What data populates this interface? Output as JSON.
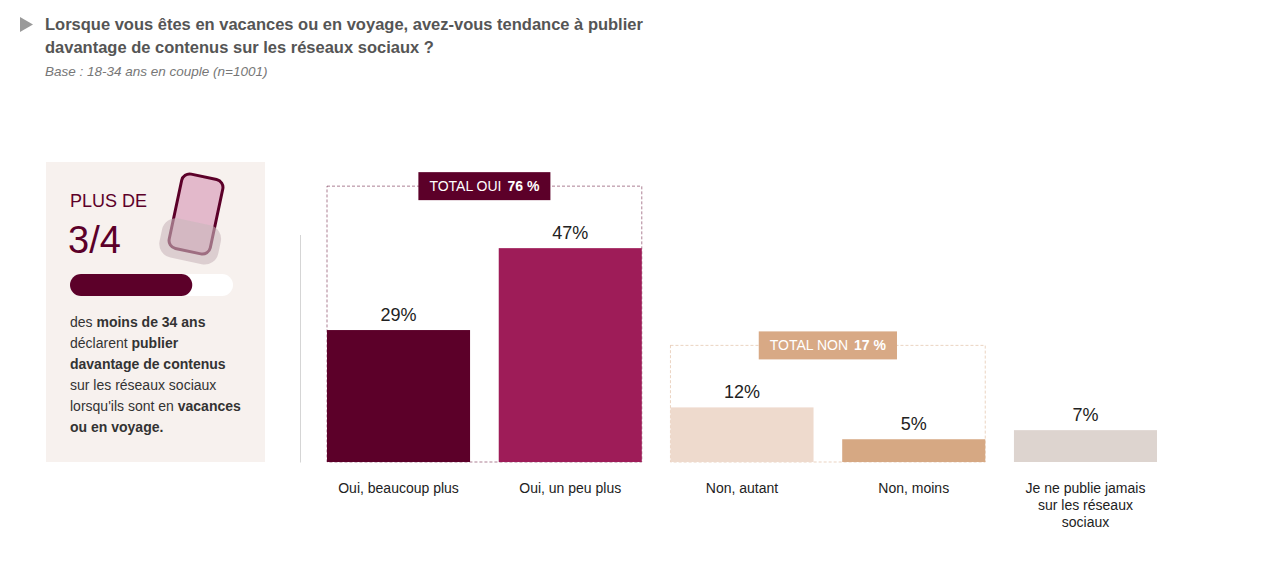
{
  "chart_data": {
    "type": "bar",
    "title": "Lorsque vous êtes en vacances ou en voyage, avez-vous tendance à publier davantage de contenus sur les réseaux sociaux ?",
    "subtitle": "Base : 18-34 ans en couple (n=1001)",
    "categories": [
      "Oui, beaucoup plus",
      "Oui, un peu plus",
      "Non, autant",
      "Non, moins",
      "Je ne publie jamais sur les réseaux sociaux"
    ],
    "values": [
      29,
      47,
      12,
      5,
      7
    ],
    "value_labels": [
      "29%",
      "47%",
      "12%",
      "5%",
      "7%"
    ],
    "colors": [
      "#5c0029",
      "#9e1c58",
      "#eedacd",
      "#d6a883",
      "#ddd4cf"
    ],
    "data_labels": true,
    "tick_labels": false,
    "ylim": [
      0,
      50
    ],
    "groups": [
      {
        "label": "TOTAL OUI",
        "value": 76,
        "value_label": "76 %",
        "members": [
          "Oui, beaucoup plus",
          "Oui, un peu plus"
        ],
        "color": "#5c0029"
      },
      {
        "label": "TOTAL NON",
        "value": 17,
        "value_label": "17 %",
        "members": [
          "Non, autant",
          "Non, moins"
        ],
        "color": "#d8a985"
      }
    ],
    "highlight": {
      "prefix": "PLUS DE",
      "value": 0.75,
      "value_label": "3/4",
      "body": "des moins de 34 ans déclarent publier davantage de contenus sur les réseaux sociaux lorsqu'ils sont en vacances ou en voyage.",
      "bold": [
        "moins de 34 ans",
        "publier davantage de contenus",
        "vacances ou en voyage"
      ]
    }
  }
}
